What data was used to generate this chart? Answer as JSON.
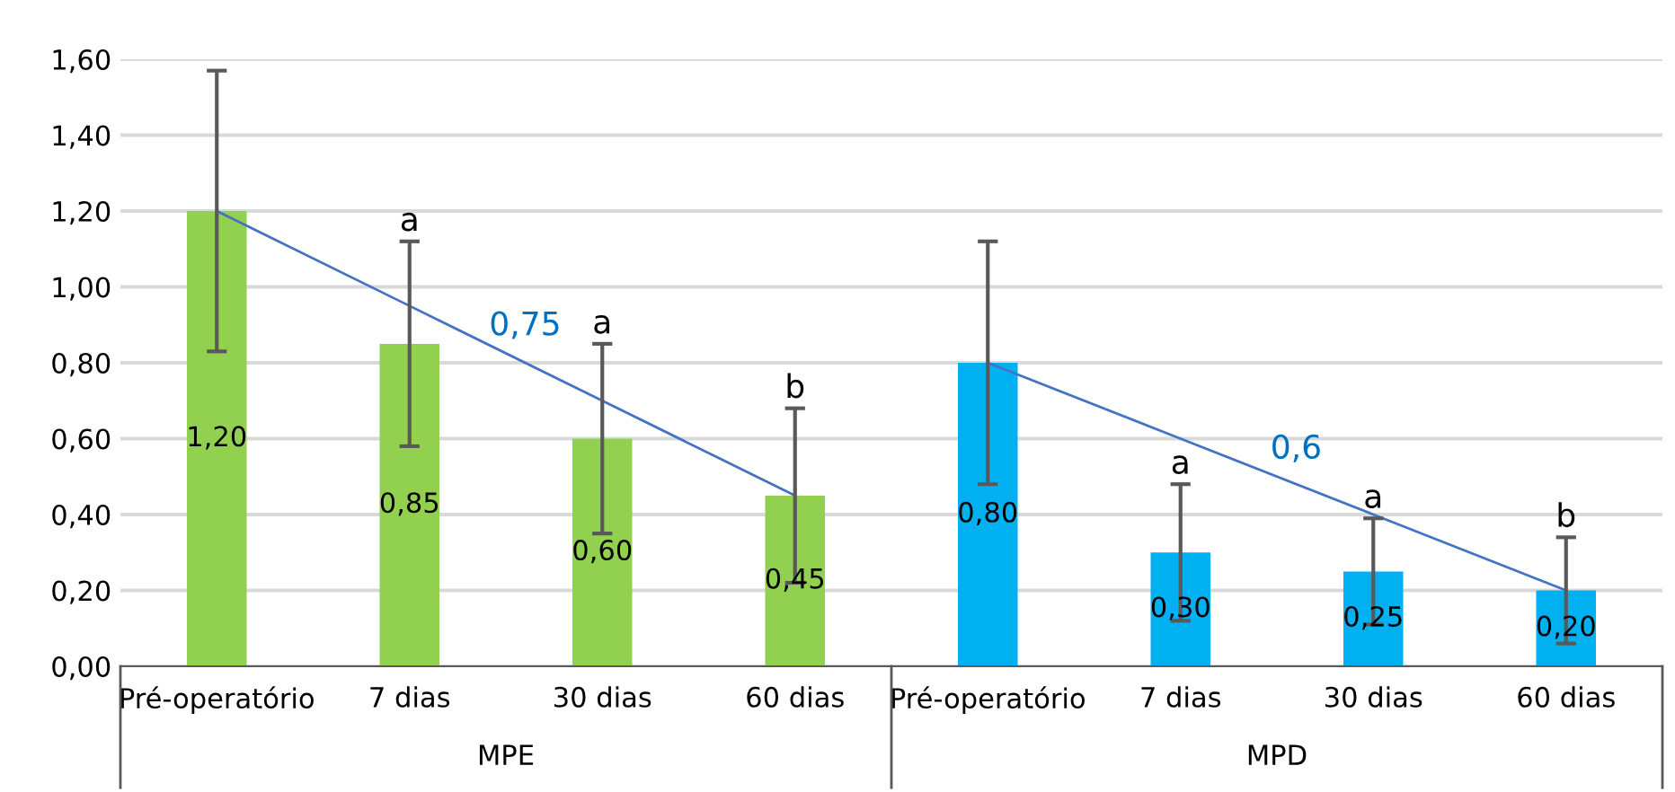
{
  "chart_data": {
    "type": "bar",
    "categories": [
      "Pré-operatório",
      "7 dias",
      "30 dias",
      "60 dias",
      "Pré-operatório",
      "7 dias",
      "30 dias",
      "60 dias"
    ],
    "series": [
      {
        "values": [
          1.2,
          0.85,
          0.6,
          0.45,
          0.8,
          0.3,
          0.25,
          0.2
        ],
        "colors": [
          "#92d050",
          "#92d050",
          "#92d050",
          "#92d050",
          "#00b0f0",
          "#00b0f0",
          "#00b0f0",
          "#00b0f0"
        ],
        "errors": [
          0.37,
          0.27,
          0.25,
          0.23,
          0.32,
          0.18,
          0.14,
          0.14
        ],
        "value_labels": [
          "1,20",
          "0,85",
          "0,60",
          "0,45",
          "0,80",
          "0,30",
          "0,25",
          "0,20"
        ]
      },
      {
        "type": "line",
        "name": "0,75",
        "color": "#4472c4",
        "values": [
          1.2,
          0.95,
          0.7,
          0.45,
          null,
          null,
          null,
          null
        ]
      },
      {
        "type": "line",
        "name": "0,6",
        "color": "#4472c4",
        "values": [
          null,
          null,
          null,
          null,
          0.8,
          0.6,
          0.4,
          0.2
        ]
      }
    ],
    "ylim": [
      0,
      1.6
    ],
    "yticks": [
      {
        "value": 0,
        "label": "0,00"
      },
      {
        "value": 0.2,
        "label": "0,20"
      },
      {
        "value": 0.4,
        "label": "0,40"
      },
      {
        "value": 0.6,
        "label": "0,60"
      },
      {
        "value": 0.8,
        "label": "0,80"
      },
      {
        "value": 1.0,
        "label": "1,00"
      },
      {
        "value": 1.2,
        "label": "1,20"
      },
      {
        "value": 1.4,
        "label": "1,40"
      },
      {
        "value": 1.6,
        "label": "1,60"
      }
    ],
    "grid": "y",
    "annotations": [
      "MPE",
      "MPD",
      "a",
      "a",
      "b",
      "a",
      "a",
      "b"
    ]
  }
}
